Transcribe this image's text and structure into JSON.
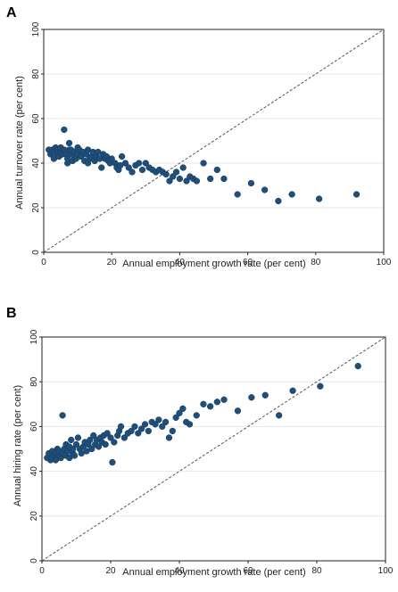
{
  "chart_data": [
    {
      "panel_label": "A",
      "type": "scatter",
      "xlabel": "Annual employment growth rate (per cent)",
      "ylabel": "Annual turnover rate (per cent)",
      "xlim": [
        0,
        100
      ],
      "ylim": [
        0,
        100
      ],
      "xticks": [
        0,
        20,
        40,
        60,
        80,
        100
      ],
      "yticks": [
        0,
        20,
        40,
        60,
        80,
        100
      ],
      "grid": true,
      "reference_line": "45-degree dashed",
      "points": [
        [
          1.5,
          46
        ],
        [
          2,
          44
        ],
        [
          2.5,
          46
        ],
        [
          3,
          42
        ],
        [
          3,
          45
        ],
        [
          3.5,
          47
        ],
        [
          4,
          44
        ],
        [
          4,
          46
        ],
        [
          4.5,
          43
        ],
        [
          5,
          45
        ],
        [
          5,
          47
        ],
        [
          5.5,
          44
        ],
        [
          6,
          46
        ],
        [
          6,
          55
        ],
        [
          6.5,
          44
        ],
        [
          7,
          40
        ],
        [
          7,
          42
        ],
        [
          7.5,
          46
        ],
        [
          7.5,
          49
        ],
        [
          8,
          44
        ],
        [
          8,
          46
        ],
        [
          8.5,
          41
        ],
        [
          9,
          43
        ],
        [
          9,
          45
        ],
        [
          9.5,
          42
        ],
        [
          10,
          44
        ],
        [
          10,
          47
        ],
        [
          10.5,
          46
        ],
        [
          11,
          43
        ],
        [
          11.5,
          45
        ],
        [
          12,
          41
        ],
        [
          12.5,
          44
        ],
        [
          13,
          40
        ],
        [
          13,
          46
        ],
        [
          13.5,
          42
        ],
        [
          14,
          43
        ],
        [
          14.5,
          45
        ],
        [
          15,
          41
        ],
        [
          15.5,
          43
        ],
        [
          16,
          45
        ],
        [
          16.5,
          42
        ],
        [
          17,
          38
        ],
        [
          17.5,
          44
        ],
        [
          18,
          42
        ],
        [
          18.5,
          43
        ],
        [
          19,
          41
        ],
        [
          19.5,
          40
        ],
        [
          20,
          42
        ],
        [
          21,
          40
        ],
        [
          21.5,
          38
        ],
        [
          22,
          37
        ],
        [
          22.5,
          39
        ],
        [
          23,
          43
        ],
        [
          24,
          40
        ],
        [
          25,
          38
        ],
        [
          26,
          36
        ],
        [
          27,
          39
        ],
        [
          28,
          40
        ],
        [
          29,
          37
        ],
        [
          30,
          40
        ],
        [
          31,
          38
        ],
        [
          32,
          37
        ],
        [
          33,
          36
        ],
        [
          34,
          37
        ],
        [
          35,
          36
        ],
        [
          36,
          35
        ],
        [
          37,
          32
        ],
        [
          38,
          34
        ],
        [
          39,
          36
        ],
        [
          40,
          33
        ],
        [
          41,
          38
        ],
        [
          42,
          32
        ],
        [
          43,
          34
        ],
        [
          44,
          33
        ],
        [
          45,
          32
        ],
        [
          47,
          40
        ],
        [
          49,
          33
        ],
        [
          51,
          37
        ],
        [
          53,
          33
        ],
        [
          57,
          26
        ],
        [
          61,
          31
        ],
        [
          65,
          28
        ],
        [
          69,
          23
        ],
        [
          73,
          26
        ],
        [
          81,
          24
        ],
        [
          92,
          26
        ]
      ]
    },
    {
      "panel_label": "B",
      "type": "scatter",
      "xlabel": "Annual employment growth rate (per cent)",
      "ylabel": "Annual hiring rate (per cent)",
      "xlim": [
        0,
        100
      ],
      "ylim": [
        0,
        100
      ],
      "xticks": [
        0,
        20,
        40,
        60,
        80,
        100
      ],
      "yticks": [
        0,
        20,
        40,
        60,
        80,
        100
      ],
      "grid": true,
      "reference_line": "45-degree dashed",
      "points": [
        [
          1.5,
          46
        ],
        [
          2,
          48
        ],
        [
          2.5,
          45
        ],
        [
          3,
          49
        ],
        [
          3,
          46
        ],
        [
          3.5,
          47
        ],
        [
          4,
          48
        ],
        [
          4,
          45
        ],
        [
          4.5,
          50
        ],
        [
          5,
          47
        ],
        [
          5,
          49
        ],
        [
          5.5,
          46
        ],
        [
          6,
          48
        ],
        [
          6,
          65
        ],
        [
          6.5,
          50
        ],
        [
          7,
          47
        ],
        [
          7,
          52
        ],
        [
          7.5,
          49
        ],
        [
          8,
          46
        ],
        [
          8,
          51
        ],
        [
          8.5,
          54
        ],
        [
          9,
          48
        ],
        [
          9,
          50
        ],
        [
          9.5,
          47
        ],
        [
          10,
          52
        ],
        [
          10.5,
          55
        ],
        [
          11,
          50
        ],
        [
          11.5,
          48
        ],
        [
          12,
          51
        ],
        [
          12.5,
          53
        ],
        [
          13,
          49
        ],
        [
          13.5,
          52
        ],
        [
          14,
          54
        ],
        [
          14.5,
          50
        ],
        [
          15,
          56
        ],
        [
          15.5,
          52
        ],
        [
          16,
          54
        ],
        [
          16.5,
          51
        ],
        [
          17,
          55
        ],
        [
          17.5,
          53
        ],
        [
          18,
          56
        ],
        [
          18.5,
          52
        ],
        [
          19,
          57
        ],
        [
          20,
          55
        ],
        [
          20.5,
          44
        ],
        [
          21,
          53
        ],
        [
          22,
          56
        ],
        [
          22.5,
          58
        ],
        [
          23,
          60
        ],
        [
          24,
          55
        ],
        [
          25,
          57
        ],
        [
          26,
          58
        ],
        [
          27,
          60
        ],
        [
          28,
          57
        ],
        [
          29,
          59
        ],
        [
          30,
          61
        ],
        [
          31,
          58
        ],
        [
          32,
          62
        ],
        [
          33,
          61
        ],
        [
          34,
          63
        ],
        [
          35,
          60
        ],
        [
          36,
          62
        ],
        [
          37,
          55
        ],
        [
          38,
          58
        ],
        [
          39,
          64
        ],
        [
          40,
          66
        ],
        [
          41,
          68
        ],
        [
          42,
          62
        ],
        [
          43,
          61
        ],
        [
          45,
          65
        ],
        [
          47,
          70
        ],
        [
          49,
          69
        ],
        [
          51,
          71
        ],
        [
          53,
          72
        ],
        [
          57,
          67
        ],
        [
          61,
          73
        ],
        [
          65,
          74
        ],
        [
          69,
          65
        ],
        [
          73,
          76
        ],
        [
          81,
          78
        ],
        [
          92,
          87
        ]
      ]
    }
  ]
}
